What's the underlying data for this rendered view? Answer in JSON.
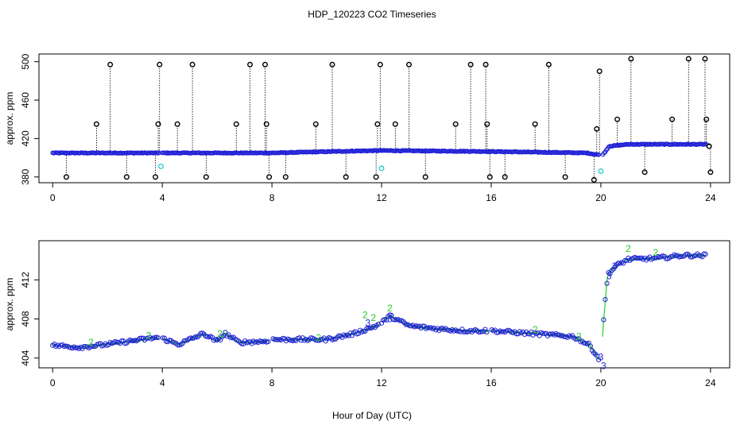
{
  "chart_data": {
    "type": "scatter",
    "title": "HDP_120223  CO2 Timeseries",
    "xlabel": "Hour of Day (UTC)",
    "colors": {
      "baseline": "#1f1fd6",
      "spike": "#000000",
      "cyan": "#22cccc",
      "green": "#22cc22"
    },
    "panels": [
      {
        "name": "top",
        "ylabel": "approx. ppm",
        "xlim": [
          -0.5,
          24.7
        ],
        "ylim": [
          374,
          508
        ],
        "x_ticks": [
          "0",
          "4",
          "8",
          "12",
          "16",
          "20",
          "24"
        ],
        "y_ticks": [
          "380",
          "420",
          "460",
          "500"
        ],
        "baseline": [
          [
            0,
            405
          ],
          [
            4,
            405
          ],
          [
            8,
            405
          ],
          [
            11,
            407
          ],
          [
            12,
            407.5
          ],
          [
            16,
            406.5
          ],
          [
            19.5,
            405
          ],
          [
            19.9,
            403
          ],
          [
            20.1,
            404
          ],
          [
            20.3,
            412
          ],
          [
            21,
            414
          ],
          [
            24,
            414
          ]
        ],
        "spikes": [
          [
            0.5,
            380
          ],
          [
            1.6,
            435
          ],
          [
            2.1,
            497
          ],
          [
            2.7,
            380
          ],
          [
            3.75,
            380
          ],
          [
            3.85,
            435
          ],
          [
            3.9,
            497
          ],
          [
            4.55,
            435
          ],
          [
            5.1,
            497
          ],
          [
            5.6,
            380
          ],
          [
            6.7,
            435
          ],
          [
            7.2,
            497
          ],
          [
            7.75,
            497
          ],
          [
            7.8,
            435
          ],
          [
            7.9,
            380
          ],
          [
            8.5,
            380
          ],
          [
            9.6,
            435
          ],
          [
            10.2,
            497
          ],
          [
            10.7,
            380
          ],
          [
            11.8,
            380
          ],
          [
            11.85,
            435
          ],
          [
            11.95,
            497
          ],
          [
            12.5,
            435
          ],
          [
            13.0,
            497
          ],
          [
            13.6,
            380
          ],
          [
            14.7,
            435
          ],
          [
            15.25,
            497
          ],
          [
            15.8,
            497
          ],
          [
            15.85,
            435
          ],
          [
            15.95,
            380
          ],
          [
            16.5,
            380
          ],
          [
            17.6,
            435
          ],
          [
            18.1,
            497
          ],
          [
            18.7,
            380
          ],
          [
            19.75,
            377
          ],
          [
            19.85,
            430
          ],
          [
            19.95,
            490
          ],
          [
            20.6,
            440
          ],
          [
            21.1,
            503
          ],
          [
            21.6,
            385
          ],
          [
            22.6,
            440
          ],
          [
            23.2,
            503
          ],
          [
            23.8,
            503
          ],
          [
            23.85,
            440
          ],
          [
            23.95,
            412
          ],
          [
            24.0,
            385
          ]
        ],
        "cyan_points": [
          [
            3.95,
            391
          ],
          [
            12.0,
            389
          ],
          [
            20.0,
            386
          ]
        ]
      },
      {
        "name": "bottom",
        "ylabel": "approx. ppm",
        "xlim": [
          -0.5,
          24.7
        ],
        "ylim": [
          403,
          416
        ],
        "x_ticks": [
          "0",
          "4",
          "8",
          "12",
          "16",
          "20",
          "24"
        ],
        "y_ticks": [
          "404",
          "408",
          "412"
        ],
        "series": [
          [
            0,
            405.3
          ],
          [
            1,
            405.1
          ],
          [
            2,
            405.4
          ],
          [
            3,
            405.8
          ],
          [
            3.8,
            406.1
          ],
          [
            4.0,
            406.0
          ],
          [
            4.6,
            405.4
          ],
          [
            5.5,
            406.5
          ],
          [
            6.0,
            405.7
          ],
          [
            6.3,
            406.5
          ],
          [
            6.8,
            405.6
          ],
          [
            7.7,
            405.7
          ],
          [
            8.0,
            405.9
          ],
          [
            9,
            405.9
          ],
          [
            10,
            405.9
          ],
          [
            11,
            406.5
          ],
          [
            11.8,
            407.3
          ],
          [
            12.0,
            407.6
          ],
          [
            12.3,
            408.3
          ],
          [
            13,
            407.3
          ],
          [
            14,
            407
          ],
          [
            15,
            406.8
          ],
          [
            16,
            406.8
          ],
          [
            17,
            406.6
          ],
          [
            18,
            406.4
          ],
          [
            19,
            406.2
          ],
          [
            19.6,
            405.3
          ],
          [
            19.95,
            403.8
          ],
          [
            20.0,
            403.2
          ],
          [
            20.1,
            408
          ],
          [
            20.25,
            412.6
          ],
          [
            20.6,
            413.5
          ],
          [
            21,
            414.1
          ],
          [
            22,
            414.2
          ],
          [
            23,
            414.5
          ],
          [
            23.8,
            414.5
          ]
        ],
        "gaps": [
          [
            3.9,
            4.0
          ],
          [
            7.9,
            8.0
          ],
          [
            11.9,
            12.0
          ],
          [
            15.9,
            16.0
          ],
          [
            19.95,
            20.05
          ]
        ],
        "labels_2": [
          [
            1.4,
            405.6
          ],
          [
            3.5,
            406.3
          ],
          [
            6.1,
            406.5
          ],
          [
            9.7,
            406.1
          ],
          [
            11.4,
            408.4
          ],
          [
            11.7,
            408.1
          ],
          [
            12.3,
            409.1
          ],
          [
            17.6,
            406.9
          ],
          [
            19.2,
            406.2
          ],
          [
            21.0,
            415.2
          ],
          [
            22.0,
            414.8
          ]
        ],
        "labels_3": [
          [
            11.5,
            407.6
          ],
          [
            12.3,
            408.0
          ],
          [
            20.0,
            404.1
          ],
          [
            20.1,
            403.2
          ],
          [
            20.3,
            412.4
          ],
          [
            20.5,
            413.4
          ]
        ]
      }
    ]
  }
}
